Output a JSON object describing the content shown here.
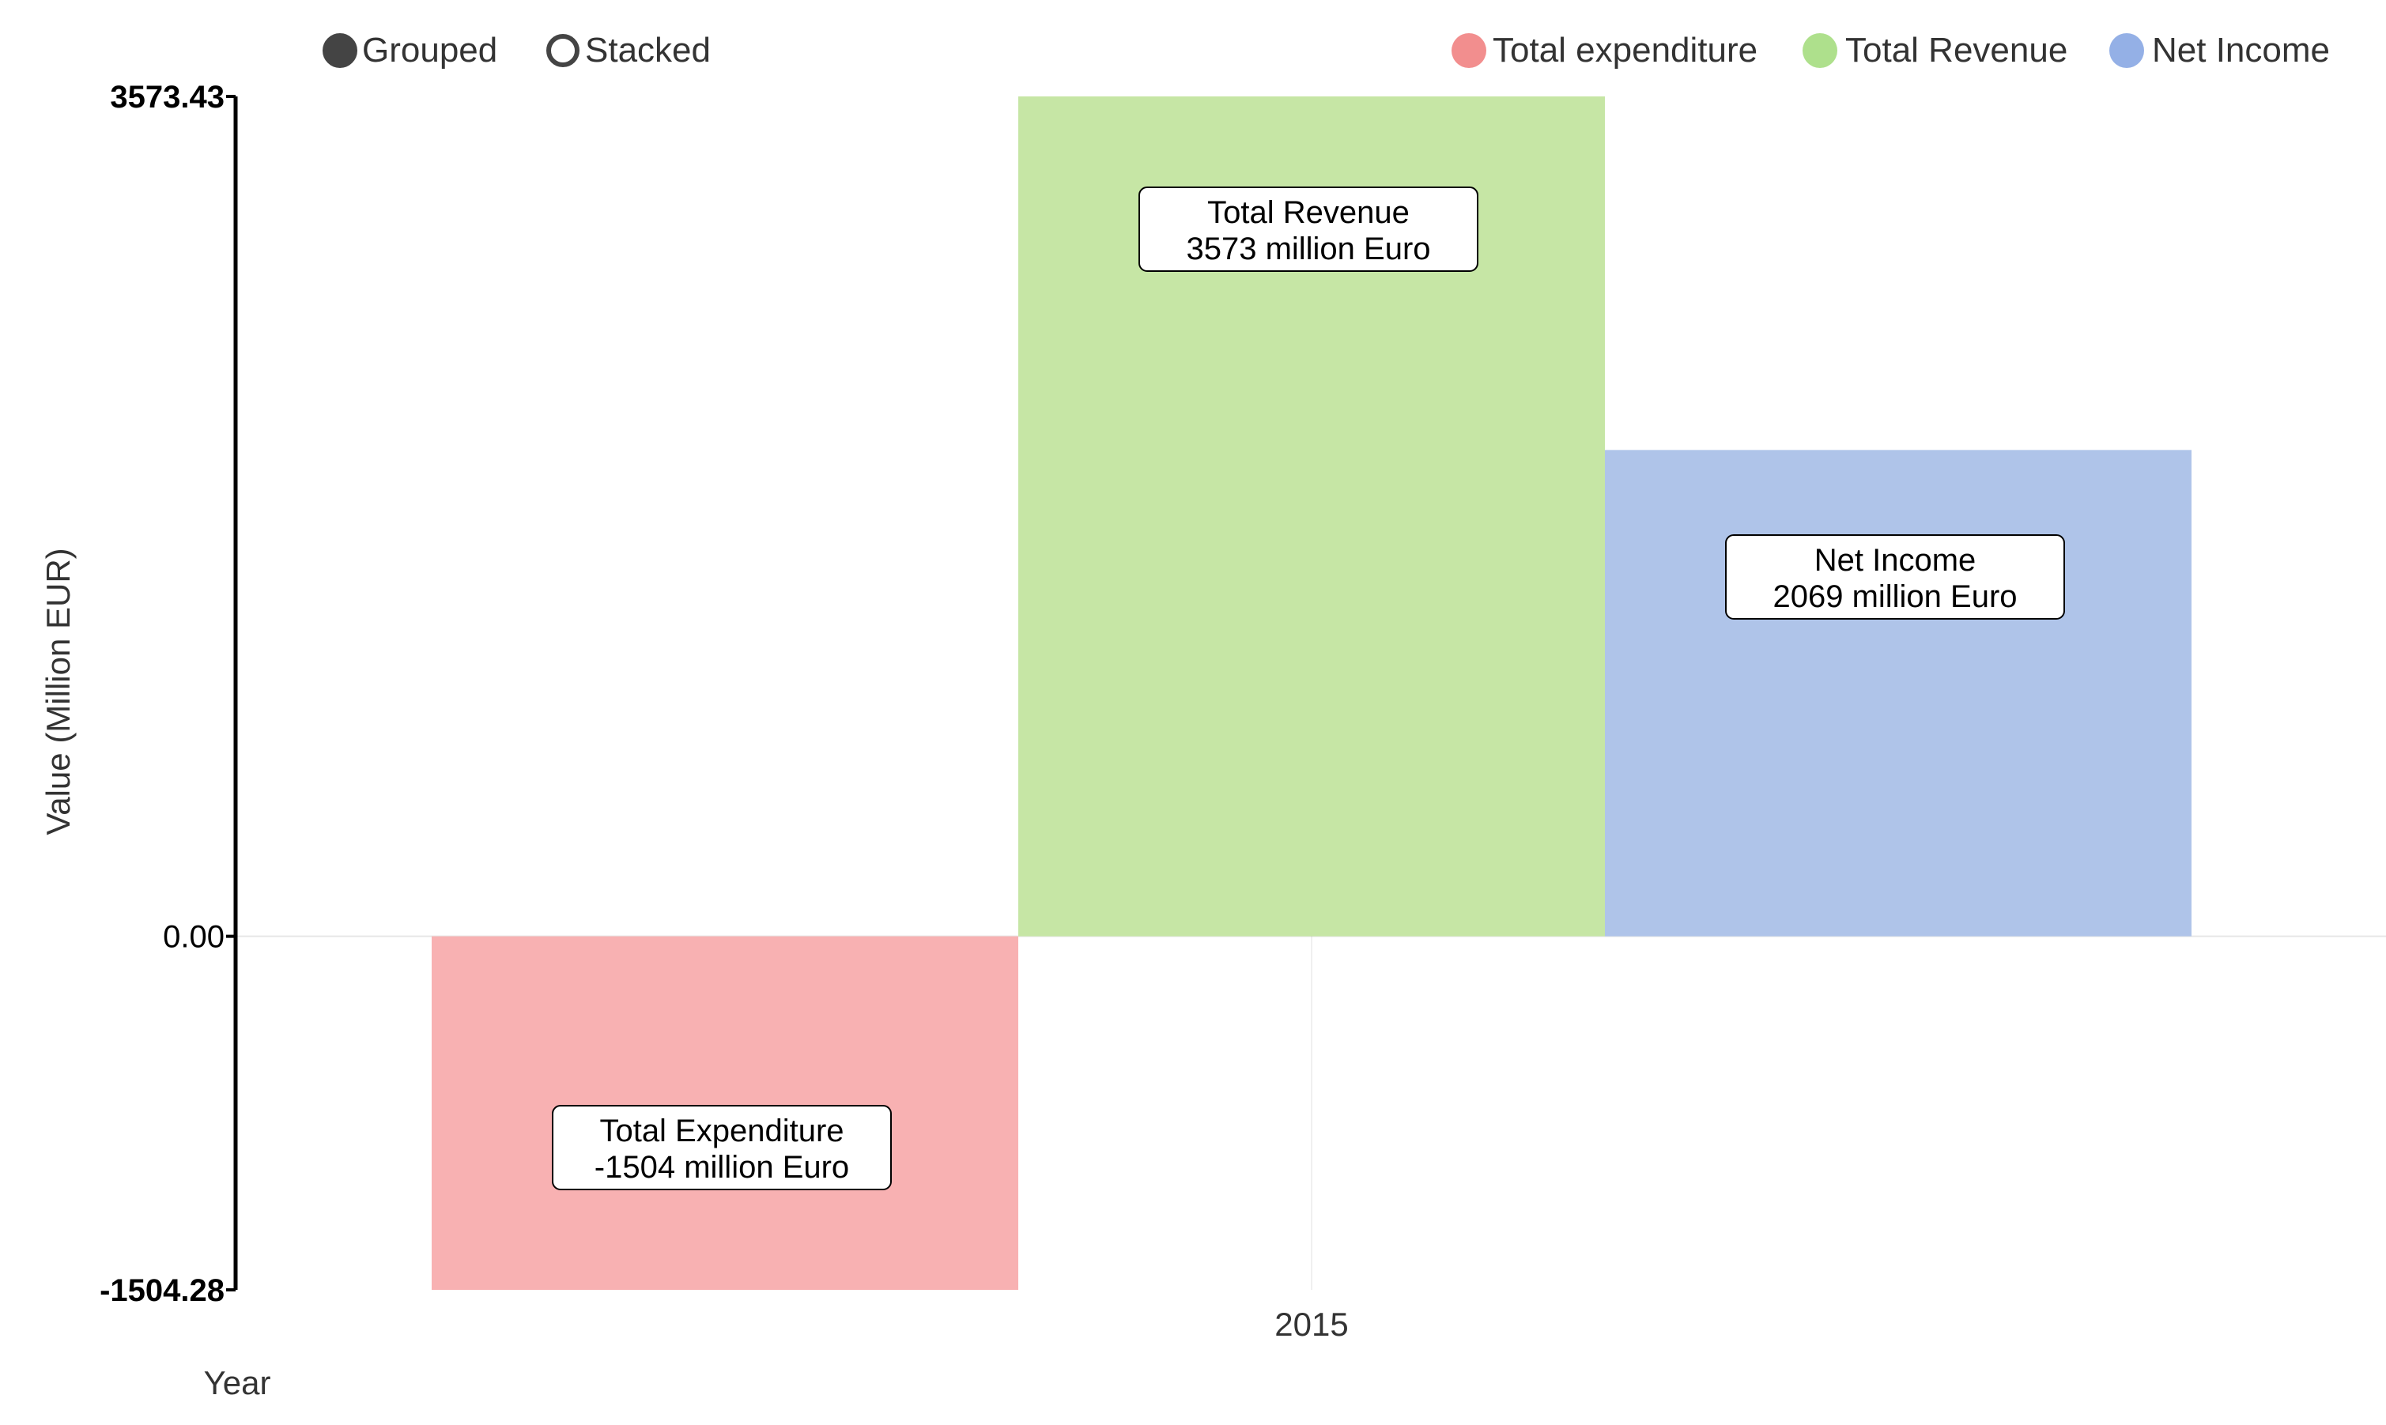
{
  "controls": [
    {
      "label": "Grouped",
      "selected": true
    },
    {
      "label": "Stacked",
      "selected": false
    }
  ],
  "chart_data": {
    "type": "bar",
    "categories": [
      "2015"
    ],
    "series": [
      {
        "name": "Total expenditure",
        "values": [
          -1504.28
        ],
        "color": "#f8b1b2",
        "marker_color": "#f28e8e"
      },
      {
        "name": "Total Revenue",
        "values": [
          3573.43
        ],
        "color": "#c6e6a5",
        "marker_color": "#aee08c"
      },
      {
        "name": "Net Income",
        "values": [
          2069.15
        ],
        "color": "#afc4e9",
        "marker_color": "#94b0e6"
      }
    ],
    "annotations": [
      {
        "series": 0,
        "line1": "Total Expenditure",
        "line2": "-1504 million Euro"
      },
      {
        "series": 1,
        "line1": "Total Revenue",
        "line2": "3573 million Euro"
      },
      {
        "series": 2,
        "line1": "Net Income",
        "line2": "2069 million Euro"
      }
    ],
    "y_ticks": [
      {
        "value": 3573.43,
        "label": "3573.43",
        "bold": true
      },
      {
        "value": 0,
        "label": "0.00",
        "bold": false
      },
      {
        "value": -1504.28,
        "label": "-1504.28",
        "bold": true
      }
    ],
    "ylim": [
      -1504.28,
      3573.43
    ],
    "xlabel": "Year",
    "ylabel": "Value (Million EUR)",
    "legend_position": "top-right",
    "grid": false
  }
}
